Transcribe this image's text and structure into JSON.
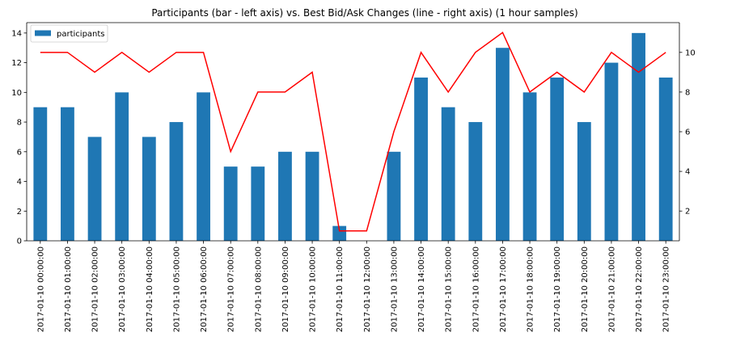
{
  "chart_data": {
    "type": "bar",
    "title": "Participants (bar - left axis) vs. Best Bid/Ask Changes (line - right axis) (1 hour samples)",
    "xlabel": "",
    "ylabel": "",
    "y2label": "",
    "categories": [
      "2017-01-10 00:00:00",
      "2017-01-10 01:00:00",
      "2017-01-10 02:00:00",
      "2017-01-10 03:00:00",
      "2017-01-10 04:00:00",
      "2017-01-10 05:00:00",
      "2017-01-10 06:00:00",
      "2017-01-10 07:00:00",
      "2017-01-10 08:00:00",
      "2017-01-10 09:00:00",
      "2017-01-10 10:00:00",
      "2017-01-10 11:00:00",
      "2017-01-10 12:00:00",
      "2017-01-10 13:00:00",
      "2017-01-10 14:00:00",
      "2017-01-10 15:00:00",
      "2017-01-10 16:00:00",
      "2017-01-10 17:00:00",
      "2017-01-10 18:00:00",
      "2017-01-10 19:00:00",
      "2017-01-10 20:00:00",
      "2017-01-10 21:00:00",
      "2017-01-10 22:00:00",
      "2017-01-10 23:00:00"
    ],
    "series": [
      {
        "name": "participants",
        "kind": "bar",
        "axis": "left",
        "color": "#1f77b4",
        "values": [
          9,
          9,
          7,
          10,
          7,
          8,
          10,
          5,
          5,
          6,
          6,
          1,
          0,
          6,
          11,
          9,
          8,
          13,
          10,
          11,
          8,
          12,
          14,
          11
        ]
      },
      {
        "kind": "line",
        "axis": "right",
        "color": "#ff0000",
        "values": [
          10,
          10,
          9,
          10,
          9,
          10,
          10,
          5,
          8,
          8,
          9,
          1,
          1,
          6,
          10,
          8,
          10,
          11,
          8,
          9,
          8,
          10,
          9,
          10
        ]
      }
    ],
    "ylim": [
      0,
      14.7
    ],
    "y2lim": [
      0.5,
      11.5
    ],
    "yticks": [
      0,
      2,
      4,
      6,
      8,
      10,
      12,
      14
    ],
    "y2ticks": [
      2,
      4,
      6,
      8,
      10
    ],
    "grid": false,
    "legend": {
      "placement": "top-left",
      "entries": [
        "participants"
      ]
    }
  }
}
